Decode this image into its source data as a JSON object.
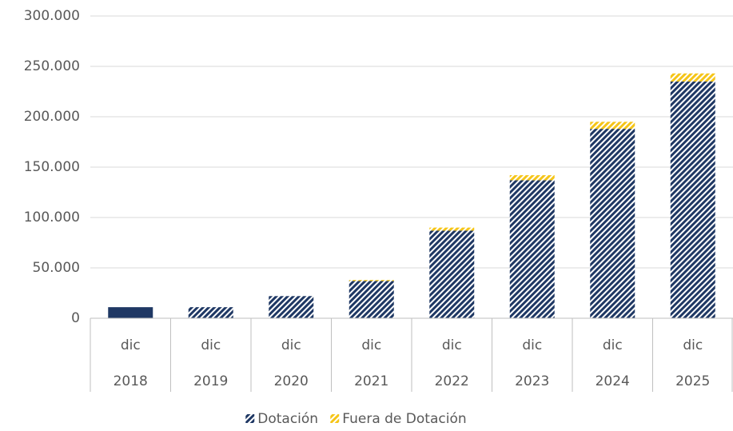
{
  "chart_data": {
    "type": "stacked_bar",
    "categories": [
      {
        "month": "dic",
        "year": "2018"
      },
      {
        "month": "dic",
        "year": "2019"
      },
      {
        "month": "dic",
        "year": "2020"
      },
      {
        "month": "dic",
        "year": "2021"
      },
      {
        "month": "dic",
        "year": "2022"
      },
      {
        "month": "dic",
        "year": "2023"
      },
      {
        "month": "dic",
        "year": "2024"
      },
      {
        "month": "dic",
        "year": "2025"
      }
    ],
    "series": [
      {
        "name": "Dotación",
        "color": "#1f3864",
        "values": [
          11000,
          11000,
          22000,
          37000,
          87000,
          137000,
          188000,
          235000
        ],
        "patterns": [
          "solid",
          "hatch",
          "hatch",
          "hatch",
          "hatch",
          "hatch",
          "hatch",
          "hatch"
        ]
      },
      {
        "name": "Fuera de Dotación",
        "color": "#f5c518",
        "values": [
          0,
          0,
          0,
          1000,
          3000,
          5000,
          7000,
          8000
        ],
        "patterns": [
          "hatch",
          "hatch",
          "hatch",
          "hatch",
          "hatch",
          "hatch",
          "hatch",
          "hatch"
        ]
      }
    ],
    "ylim": [
      0,
      300000
    ],
    "yticks": [
      0,
      {
        "value": 50000,
        "label": "50.000"
      },
      {
        "value": 100000,
        "label": "100.000"
      },
      {
        "value": 150000,
        "label": "150.000"
      },
      {
        "value": 200000,
        "label": "200.000"
      },
      {
        "value": 250000,
        "label": "250.000"
      },
      {
        "value": 300000,
        "label": "300.000"
      }
    ],
    "grid": true,
    "legend": "bottom"
  }
}
